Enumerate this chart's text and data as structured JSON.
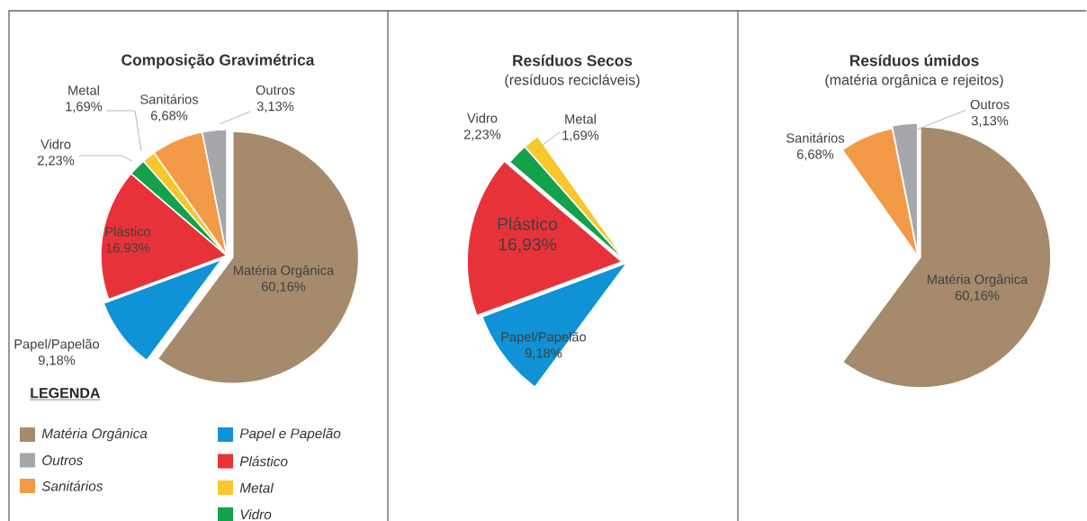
{
  "chart_data": [
    {
      "type": "pie",
      "title": "Composição Gravimétrica",
      "categories": [
        "Matéria Orgânica",
        "Papel/Papelão",
        "Plástico",
        "Vidro",
        "Metal",
        "Sanitários",
        "Outros"
      ],
      "values": [
        60.16,
        9.18,
        16.93,
        2.23,
        1.69,
        6.68,
        3.13
      ],
      "value_labels": [
        "60,16%",
        "9,18%",
        "16,93%",
        "2,23%",
        "1,69%",
        "6,68%",
        "3,13%"
      ],
      "colors": [
        "#a58b6c",
        "#0f93d6",
        "#e8323a",
        "#13a24b",
        "#f7c72b",
        "#f39a47",
        "#a6a7ab"
      ]
    },
    {
      "type": "pie",
      "title": "Resíduos Secos",
      "subtitle": "(resíduos recicláveis)",
      "categories": [
        "Papel/Papelão",
        "Plástico",
        "Vidro",
        "Metal"
      ],
      "values": [
        9.18,
        16.93,
        2.23,
        1.69
      ],
      "value_labels": [
        "9,18%",
        "16,93%",
        "2,23%",
        "1,69%"
      ],
      "colors": [
        "#0f93d6",
        "#e8323a",
        "#13a24b",
        "#f7c72b"
      ]
    },
    {
      "type": "pie",
      "title": "Resíduos úmidos",
      "subtitle": "(matéria orgânica e rejeitos)",
      "categories": [
        "Sanitários",
        "Outros",
        "Matéria Orgânica"
      ],
      "values": [
        6.68,
        3.13,
        60.16
      ],
      "value_labels": [
        "6,68%",
        "3,13%",
        "60,16%"
      ],
      "colors": [
        "#f39a47",
        "#a6a7ab",
        "#a58b6c"
      ]
    },
    {
      "type": "other",
      "title": "LEGENDA",
      "categories": [
        "Matéria Orgânica",
        "Outros",
        "Sanitários",
        "Papel e Papelão",
        "Plástico",
        "Metal",
        "Vidro"
      ],
      "colors": [
        "#a58b6c",
        "#a6a7ab",
        "#f39a47",
        "#0f93d6",
        "#e8323a",
        "#f7c72b",
        "#13a24b"
      ]
    }
  ]
}
